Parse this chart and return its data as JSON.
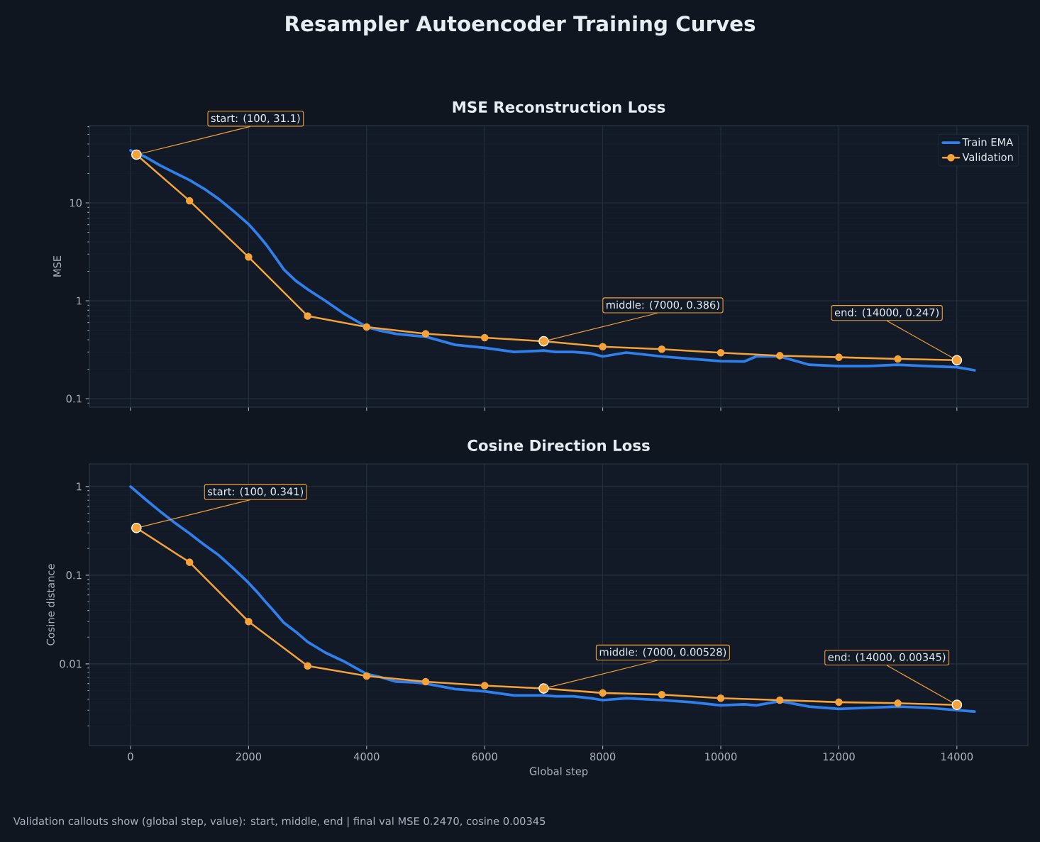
{
  "chart_data": [
    {
      "type": "line",
      "title": "MSE Reconstruction Loss",
      "ylabel": "MSE",
      "log": "y",
      "grid": true,
      "legend": "top right",
      "tick_labels": "y",
      "xlim": [
        -697,
        15204
      ],
      "ylim": [
        0.0819,
        61.7
      ],
      "xticks": [
        0,
        2000,
        4000,
        6000,
        8000,
        10000,
        12000,
        14000
      ],
      "yticks": [
        0.1,
        1,
        10
      ],
      "series": [
        {
          "name": "Train EMA",
          "color": "#2f80ed",
          "marker": "none",
          "x": [
            0,
            250,
            500,
            750,
            1000,
            1250,
            1500,
            1750,
            2000,
            2150,
            2300,
            2450,
            2600,
            2800,
            3000,
            3300,
            3600,
            4000,
            4200,
            4500,
            4800,
            5000,
            5500,
            6000,
            6500,
            7000,
            7200,
            7500,
            7800,
            8000,
            8400,
            9000,
            9500,
            10000,
            10400,
            10600,
            11000,
            11500,
            12000,
            12500,
            13000,
            13500,
            14000,
            14300
          ],
          "values": [
            34.4,
            29.5,
            24.2,
            20.3,
            17.1,
            13.9,
            10.9,
            8.2,
            6.06,
            4.8,
            3.74,
            2.8,
            2.08,
            1.6,
            1.31,
            1.0,
            0.75,
            0.54,
            0.5,
            0.46,
            0.44,
            0.43,
            0.355,
            0.33,
            0.3,
            0.31,
            0.3,
            0.3,
            0.29,
            0.27,
            0.296,
            0.27,
            0.255,
            0.242,
            0.24,
            0.27,
            0.27,
            0.222,
            0.215,
            0.215,
            0.222,
            0.215,
            0.21,
            0.195
          ]
        },
        {
          "name": "Validation",
          "color": "#f5a23a",
          "marker": "circle",
          "x": [
            100,
            1000,
            2000,
            3000,
            4000,
            5000,
            6000,
            7000,
            8000,
            9000,
            10000,
            11000,
            12000,
            13000,
            14000
          ],
          "values": [
            31.1,
            10.5,
            2.8,
            0.7,
            0.54,
            0.46,
            0.42,
            0.386,
            0.34,
            0.32,
            0.295,
            0.275,
            0.265,
            0.255,
            0.247
          ]
        }
      ],
      "annotations": [
        "Resampler Autoencoder Training Curves",
        {
          "text": "start: (100, 31.1)",
          "x": 100,
          "y": 31.1
        },
        {
          "text": "middle: (7000, 0.386)",
          "x": 7000,
          "y": 0.386
        },
        {
          "text": "end: (14000, 0.247)",
          "x": 14000,
          "y": 0.247
        }
      ]
    },
    {
      "type": "line",
      "title": "Cosine Direction Loss",
      "xlabel": "Global step",
      "ylabel": "Cosine distance",
      "log": "y",
      "grid": true,
      "xlim": [
        -697,
        15204
      ],
      "ylim": [
        0.0012,
        1.8
      ],
      "xticks": [
        0,
        2000,
        4000,
        6000,
        8000,
        10000,
        12000,
        14000
      ],
      "yticks": [
        0.01,
        0.1,
        1
      ],
      "series": [
        {
          "color": "#2f80ed",
          "marker": "none",
          "x": [
            0,
            250,
            500,
            750,
            1000,
            1250,
            1500,
            1750,
            2000,
            2150,
            2300,
            2450,
            2600,
            2800,
            3000,
            3300,
            3600,
            4000,
            4200,
            4500,
            4800,
            5000,
            5500,
            6000,
            6500,
            7000,
            7200,
            7500,
            7800,
            8000,
            8400,
            9000,
            9500,
            10000,
            10400,
            10600,
            11000,
            11500,
            12000,
            12500,
            13000,
            13500,
            14000,
            14300
          ],
          "values": [
            1.0,
            0.72,
            0.525,
            0.39,
            0.296,
            0.22,
            0.167,
            0.118,
            0.082,
            0.064,
            0.049,
            0.038,
            0.029,
            0.023,
            0.0177,
            0.0134,
            0.0108,
            0.0077,
            0.0072,
            0.0063,
            0.0062,
            0.006,
            0.0052,
            0.0049,
            0.0044,
            0.0044,
            0.0043,
            0.0043,
            0.0041,
            0.0039,
            0.0041,
            0.0039,
            0.0037,
            0.0034,
            0.0035,
            0.0034,
            0.0038,
            0.0033,
            0.0031,
            0.0032,
            0.0033,
            0.0032,
            null,
            0.0029
          ]
        },
        {
          "color": "#f5a23a",
          "marker": "circle",
          "x": [
            100,
            1000,
            2000,
            3000,
            4000,
            5000,
            6000,
            7000,
            8000,
            9000,
            10000,
            11000,
            12000,
            13000,
            14000
          ],
          "values": [
            0.341,
            0.14,
            0.03,
            0.0095,
            0.0073,
            0.0063,
            0.0057,
            0.00528,
            0.0047,
            0.0045,
            0.0041,
            0.0039,
            0.0037,
            0.0036,
            0.00345
          ]
        }
      ],
      "annotations": [
        {
          "text": "start: (100, 0.341)",
          "x": 100,
          "y": 0.341
        },
        {
          "text": "middle: (7000, 0.00528)",
          "x": 7000,
          "y": 0.00528
        },
        {
          "text": "end: (14000, 0.00345)",
          "x": 14000,
          "y": 0.00345
        },
        "Validation callouts show (global step, value): start, middle, end | final val MSE 0.2470, cosine 0.00345"
      ]
    }
  ]
}
